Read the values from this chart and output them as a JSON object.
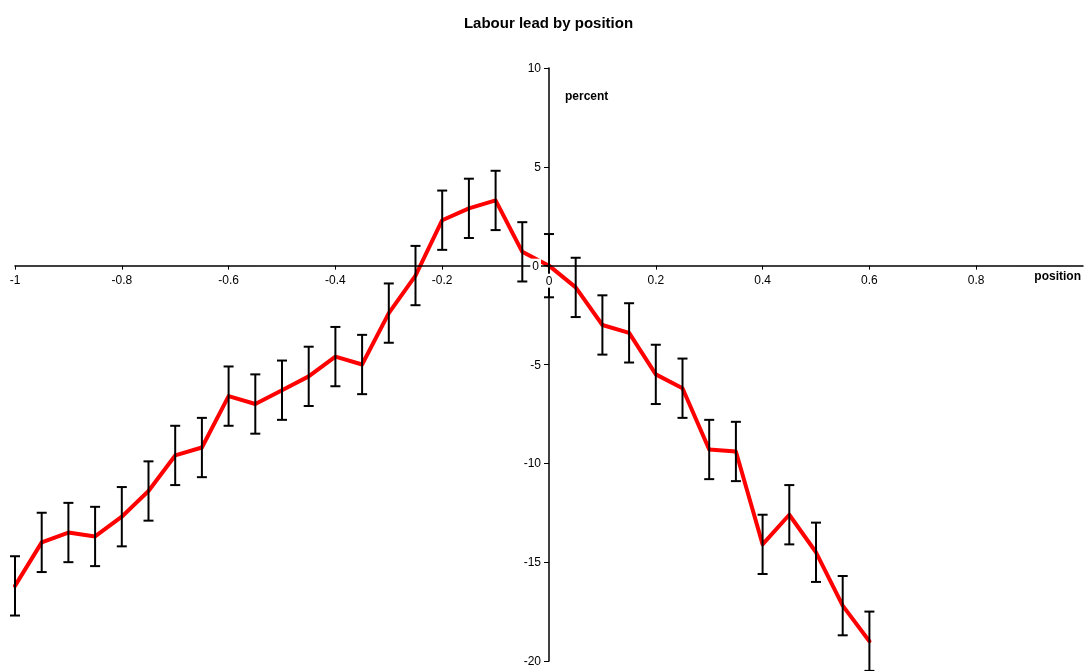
{
  "chart_data": {
    "type": "line",
    "title": "Labour lead by position",
    "xlabel": "position",
    "ylabel": "percent",
    "x": [
      -1,
      -0.95,
      -0.9,
      -0.85,
      -0.8,
      -0.75,
      -0.7,
      -0.65,
      -0.6,
      -0.55,
      -0.5,
      -0.45,
      -0.4,
      -0.35,
      -0.3,
      -0.25,
      -0.2,
      -0.15,
      -0.1,
      -0.05,
      0,
      0.05,
      0.1,
      0.15,
      0.2,
      0.25,
      0.3,
      0.35,
      0.4,
      0.45,
      0.5,
      0.55,
      0.6
    ],
    "series": [
      {
        "color": "#ff0000",
        "values": [
          -16.2,
          -14.0,
          -13.5,
          -13.7,
          -12.7,
          -11.4,
          -9.6,
          -9.2,
          -6.6,
          -7.0,
          -6.3,
          -5.6,
          -4.6,
          -5.0,
          -2.4,
          -0.5,
          2.3,
          2.9,
          3.3,
          0.7,
          0,
          -1.1,
          -3.0,
          -3.4,
          -5.5,
          -6.2,
          -9.3,
          -9.4,
          -14.1,
          -12.6,
          -14.5,
          -17.2,
          -19.0
        ],
        "errors": [
          1.5,
          1.5,
          1.5,
          1.5,
          1.5,
          1.5,
          1.5,
          1.5,
          1.5,
          1.5,
          1.5,
          1.5,
          1.5,
          1.5,
          1.5,
          1.5,
          1.5,
          1.5,
          1.5,
          1.5,
          1.6,
          1.5,
          1.5,
          1.5,
          1.5,
          1.5,
          1.5,
          1.5,
          1.5,
          1.5,
          1.5,
          1.5,
          1.5
        ]
      }
    ],
    "xlim": [
      -1,
      1
    ],
    "xticks": [
      -1,
      -0.8,
      -0.6,
      -0.4,
      -0.2,
      0,
      0.2,
      0.4,
      0.6,
      0.8
    ],
    "ylim": [
      -20,
      10
    ],
    "yticks": [
      -20,
      -15,
      -10,
      -5,
      0,
      5,
      10
    ],
    "grid": false,
    "marker": "none",
    "line_style": "solid"
  }
}
